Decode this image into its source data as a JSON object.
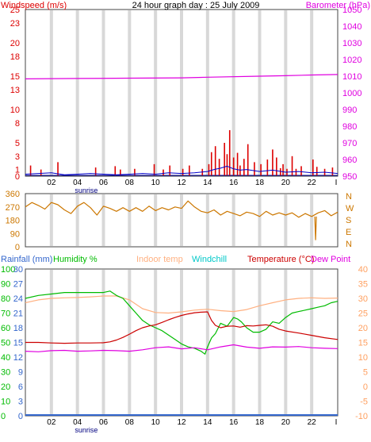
{
  "chart_data": [
    {
      "type": "line",
      "title": "24 hour graph day : 25 July 2009",
      "left_axis": {
        "label": "Windspeed (m/s)",
        "range": [
          0,
          25
        ],
        "ticks": [
          0,
          1,
          3,
          5,
          8,
          10,
          13,
          15,
          18,
          20,
          23,
          25
        ]
      },
      "right_axis": {
        "label": "Barometer (hPa)",
        "range": [
          950,
          1050
        ],
        "ticks": [
          950,
          960,
          970,
          980,
          990,
          1000,
          1010,
          1020,
          1030,
          1040,
          1050
        ]
      },
      "x_axis": {
        "range": [
          0,
          24
        ],
        "tick_labels": [
          "02",
          "04",
          "06",
          "08",
          "10",
          "12",
          "14",
          "16",
          "18",
          "20",
          "22"
        ],
        "end_label": "I",
        "sunrise_label": "sunrise",
        "sunrise_hour": 4.5
      },
      "grid": true,
      "series": [
        {
          "name": "Barometer",
          "axis": "right",
          "color": "#e000e0",
          "x": [
            0,
            4,
            8,
            12,
            14,
            18,
            20,
            22,
            24
          ],
          "y": [
            1008.4,
            1008.6,
            1008.8,
            1009.0,
            1009.4,
            1010.0,
            1010.3,
            1010.7,
            1011.0
          ]
        }
      ],
      "wind_gust_color": "#dd0000",
      "wind_avg_color": "#0000cc",
      "wind_gusts": [
        [
          0.4,
          1.6
        ],
        [
          1.2,
          1.0
        ],
        [
          2.5,
          2.1
        ],
        [
          5.4,
          1.3
        ],
        [
          6.9,
          1.5
        ],
        [
          7.3,
          1.0
        ],
        [
          8.4,
          1.1
        ],
        [
          9.9,
          1.8
        ],
        [
          10.6,
          1.0
        ],
        [
          11.1,
          1.6
        ],
        [
          12.1,
          1.1
        ],
        [
          12.6,
          1.6
        ],
        [
          13.6,
          1.1
        ],
        [
          14.1,
          1.8
        ],
        [
          14.3,
          3.6
        ],
        [
          14.6,
          4.5
        ],
        [
          14.9,
          2.6
        ],
        [
          15.3,
          5.0
        ],
        [
          15.5,
          3.3
        ],
        [
          15.7,
          6.9
        ],
        [
          16.0,
          2.8
        ],
        [
          16.3,
          3.5
        ],
        [
          16.5,
          1.6
        ],
        [
          16.8,
          2.6
        ],
        [
          17.1,
          4.8
        ],
        [
          17.6,
          2.1
        ],
        [
          18.1,
          1.8
        ],
        [
          18.6,
          2.5
        ],
        [
          19.0,
          4.0
        ],
        [
          19.3,
          2.8
        ],
        [
          19.6,
          1.2
        ],
        [
          19.8,
          1.8
        ],
        [
          20.1,
          1.1
        ],
        [
          20.5,
          3.0
        ],
        [
          20.8,
          1.1
        ],
        [
          21.2,
          1.5
        ],
        [
          22.1,
          2.5
        ],
        [
          22.4,
          1.4
        ],
        [
          23.0,
          1.1
        ],
        [
          23.6,
          1.3
        ]
      ],
      "wind_avg": {
        "x": [
          0,
          1,
          2,
          3,
          4,
          5,
          6,
          7,
          8,
          9,
          10,
          11,
          12,
          13,
          14,
          14.5,
          15,
          15.5,
          16,
          16.5,
          17,
          18,
          19,
          20,
          21,
          22,
          23,
          24
        ],
        "y": [
          0.3,
          0.4,
          0.5,
          0.2,
          0.3,
          0.4,
          0.3,
          0.2,
          0.3,
          0.4,
          0.3,
          0.5,
          0.4,
          0.5,
          0.7,
          1.0,
          1.2,
          1.5,
          1.1,
          0.9,
          1.0,
          0.7,
          0.9,
          0.6,
          0.7,
          0.5,
          0.6,
          0.4
        ]
      }
    },
    {
      "type": "line",
      "left_axis": {
        "range": [
          0,
          360
        ],
        "ticks": [
          0,
          90,
          180,
          270,
          360
        ]
      },
      "compass_labels": [
        "N",
        "W",
        "S",
        "E",
        "N"
      ],
      "x_axis": {
        "range": [
          0,
          24
        ]
      },
      "grid": true,
      "series": [
        {
          "name": "Wind direction",
          "color": "#cc7700",
          "x": [
            0,
            0.5,
            1,
            1.5,
            2,
            2.5,
            3,
            3.5,
            4,
            4.5,
            5,
            5.5,
            6,
            6.5,
            7,
            7.5,
            8,
            8.5,
            9,
            9.5,
            10,
            10.5,
            11,
            11.5,
            12,
            12.5,
            13,
            13.5,
            14,
            14.5,
            15,
            15.5,
            16,
            16.5,
            17,
            17.5,
            18,
            18.5,
            19,
            19.5,
            20,
            20.5,
            21,
            21.5,
            22,
            22.5,
            23,
            23.5,
            24
          ],
          "y": [
            270,
            300,
            280,
            255,
            300,
            285,
            250,
            225,
            275,
            300,
            265,
            215,
            275,
            260,
            240,
            265,
            240,
            265,
            240,
            275,
            245,
            265,
            250,
            270,
            260,
            310,
            270,
            240,
            230,
            250,
            215,
            240,
            225,
            210,
            235,
            225,
            205,
            240,
            215,
            230,
            215,
            230,
            200,
            225,
            205,
            230,
            245,
            210,
            235
          ]
        }
      ],
      "outlier": {
        "x": 22.3,
        "y": 45
      }
    },
    {
      "type": "line",
      "axes": [
        {
          "label": "Rainfall (mm)",
          "color": "#3366cc",
          "side": "left",
          "ticks": [
            0,
            3,
            6,
            9,
            12,
            15,
            18,
            21,
            24,
            27,
            30
          ]
        },
        {
          "label": "Humidity %",
          "color": "#00bb00",
          "side": "left",
          "range": [
            0,
            100
          ],
          "ticks": [
            0,
            10,
            20,
            30,
            40,
            50,
            60,
            70,
            80,
            90,
            100
          ]
        },
        {
          "label": "Indoor temp",
          "color": "#ffb080"
        },
        {
          "label": "Windchill",
          "color": "#00c8c8"
        },
        {
          "label": "Temperature (°C)",
          "color": "#cc0000",
          "side": "right",
          "range": [
            -10,
            40
          ],
          "ticks": [
            -10,
            -5,
            0,
            5,
            10,
            15,
            20,
            25,
            30,
            35,
            40
          ]
        },
        {
          "label": "Dew Point",
          "color": "#e000e0"
        }
      ],
      "x_axis": {
        "range": [
          0,
          24
        ],
        "tick_labels": [
          "02",
          "04",
          "06",
          "08",
          "10",
          "12",
          "14",
          "16",
          "18",
          "20",
          "22"
        ],
        "end_label": "I",
        "sunrise_label": "sunrise",
        "sunrise_hour": 4.5
      },
      "grid": true,
      "series": [
        {
          "name": "Indoor temp",
          "color": "#ffb080",
          "x": [
            0,
            1,
            2,
            3,
            4,
            5,
            6,
            7,
            8,
            9,
            10,
            11,
            12,
            13,
            14,
            15,
            16,
            17,
            18,
            19,
            20,
            21,
            22,
            23,
            24
          ],
          "y": [
            28.5,
            29.5,
            30.0,
            30.2,
            30.3,
            30.5,
            30.8,
            30.8,
            29.5,
            26.5,
            25.2,
            25.0,
            25.4,
            26.0,
            26.3,
            25.8,
            25.5,
            26.2,
            27.5,
            28.5,
            29.5,
            30.0,
            30.2,
            30.0,
            30.1
          ]
        },
        {
          "name": "Humidity %",
          "color": "#00bb00",
          "x": [
            0,
            1,
            2,
            3,
            4,
            5,
            6,
            6.5,
            7,
            7.5,
            8,
            8.5,
            9,
            9.5,
            10,
            10.5,
            11,
            11.5,
            12,
            12.5,
            13,
            13.5,
            13.8,
            14,
            14.3,
            14.6,
            15,
            15.5,
            16,
            16.3,
            16.6,
            17,
            17.5,
            18,
            18.5,
            19,
            19.5,
            20,
            20.5,
            21,
            21.5,
            22,
            22.5,
            23,
            23.5,
            24
          ],
          "y": [
            80,
            82,
            83,
            84,
            84,
            84,
            84,
            85,
            82,
            80,
            75,
            70,
            65,
            62,
            60,
            58,
            55,
            52,
            49,
            47,
            46,
            44,
            42,
            47,
            53,
            56,
            63,
            61,
            67,
            66,
            64,
            60,
            57,
            57,
            59,
            64,
            63,
            67,
            70,
            71,
            72,
            73,
            74,
            75,
            77,
            78
          ]
        },
        {
          "name": "Temperature (°C)",
          "color": "#cc0000",
          "x": [
            0,
            1,
            2,
            3,
            4,
            5,
            6,
            6.5,
            7,
            7.5,
            8,
            8.5,
            9,
            9.5,
            10,
            10.5,
            11,
            11.5,
            12,
            12.5,
            13,
            13.5,
            14,
            14.3,
            14.6,
            15,
            15.5,
            16,
            16.5,
            17,
            17.5,
            18,
            18.5,
            19,
            19.5,
            20,
            21,
            22,
            23,
            24
          ],
          "y": [
            15.0,
            15.0,
            14.8,
            14.7,
            14.8,
            14.8,
            14.9,
            15.2,
            15.8,
            16.7,
            17.8,
            19.0,
            20.0,
            20.6,
            21.0,
            21.8,
            22.7,
            23.5,
            24.2,
            24.7,
            25.1,
            25.3,
            25.4,
            22.5,
            20.8,
            20.0,
            20.5,
            20.6,
            20.2,
            20.7,
            20.6,
            20.8,
            21.0,
            20.5,
            19.5,
            18.9,
            18.2,
            17.4,
            16.6,
            16.0
          ]
        },
        {
          "name": "Dew Point",
          "color": "#e000e0",
          "x": [
            0,
            1,
            2,
            3,
            4,
            5,
            6,
            7,
            8,
            9,
            10,
            11,
            12,
            13,
            14,
            15,
            16,
            17,
            18,
            19,
            20,
            21,
            22,
            23,
            24
          ],
          "y": [
            12.0,
            11.8,
            12.2,
            12.3,
            12.0,
            12.1,
            12.3,
            12.2,
            12.0,
            12.5,
            13.2,
            13.5,
            12.8,
            13.2,
            12.5,
            13.5,
            14.2,
            13.4,
            13.0,
            13.5,
            13.4,
            13.6,
            13.2,
            13.0,
            12.9
          ]
        },
        {
          "name": "Rainfall (mm)",
          "color": "#3366cc",
          "x": [
            0,
            24
          ],
          "y": [
            0,
            0
          ]
        }
      ]
    }
  ]
}
